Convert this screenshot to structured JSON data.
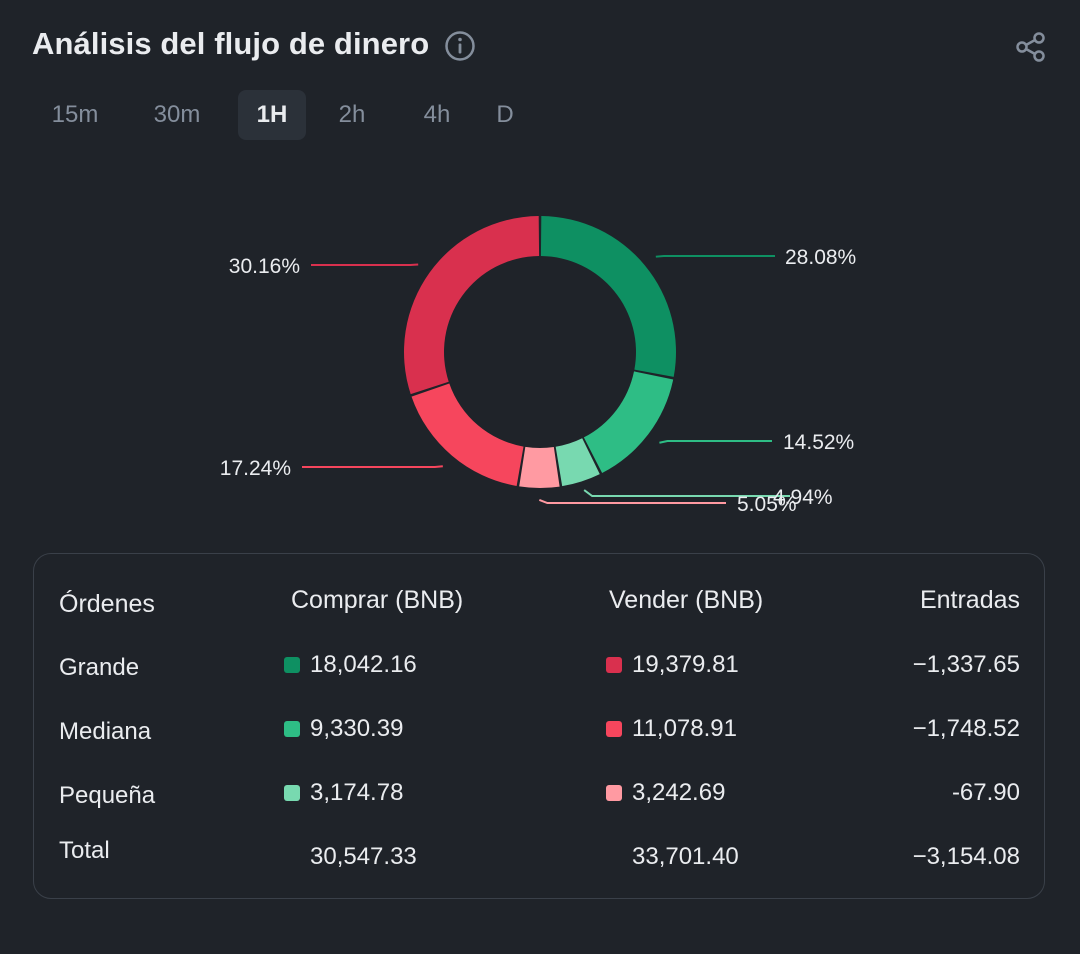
{
  "header": {
    "title": "Análisis del flujo de dinero"
  },
  "tabs": [
    {
      "label": "15m",
      "active": false
    },
    {
      "label": "30m",
      "active": false
    },
    {
      "label": "1H",
      "active": true
    },
    {
      "label": "2h",
      "active": false
    },
    {
      "label": "4h",
      "active": false
    },
    {
      "label": "D",
      "active": false
    }
  ],
  "colors": {
    "buy_large": "#0e9062",
    "buy_medium": "#2ebd85",
    "buy_small": "#78d9b0",
    "sell_large": "#d9304e",
    "sell_medium": "#f6465d",
    "sell_small": "#ff9aa2",
    "background": "#1f2329"
  },
  "chart_data": {
    "type": "pie",
    "subtype": "donut",
    "slices": [
      {
        "label": "28.08%",
        "value": 28.08,
        "color": "#0e9062"
      },
      {
        "label": "14.52%",
        "value": 14.52,
        "color": "#2ebd85"
      },
      {
        "label": "4.94%",
        "value": 4.94,
        "color": "#78d9b0"
      },
      {
        "label": "5.05%",
        "value": 5.05,
        "color": "#ff9aa2"
      },
      {
        "label": "17.24%",
        "value": 17.24,
        "color": "#f6465d"
      },
      {
        "label": "30.16%",
        "value": 30.16,
        "color": "#d9304e"
      }
    ]
  },
  "table": {
    "headers": {
      "orders": "Órdenes",
      "buy": "Comprar (BNB)",
      "sell": "Vender (BNB)",
      "inflow": "Entradas"
    },
    "rows": [
      {
        "name": "Grande",
        "buy": "18,042.16",
        "sell": "19,379.81",
        "inflow": "−1,337.65",
        "buy_color": "#0e9062",
        "sell_color": "#d9304e"
      },
      {
        "name": "Mediana",
        "buy": "9,330.39",
        "sell": "11,078.91",
        "inflow": "−1,748.52",
        "buy_color": "#2ebd85",
        "sell_color": "#f6465d"
      },
      {
        "name": "Pequeña",
        "buy": "3,174.78",
        "sell": "3,242.69",
        "inflow": "-67.90",
        "buy_color": "#78d9b0",
        "sell_color": "#ff9aa2"
      }
    ],
    "total": {
      "name": "Total",
      "buy": "30,547.33",
      "sell": "33,701.40",
      "inflow": "−3,154.08"
    }
  }
}
